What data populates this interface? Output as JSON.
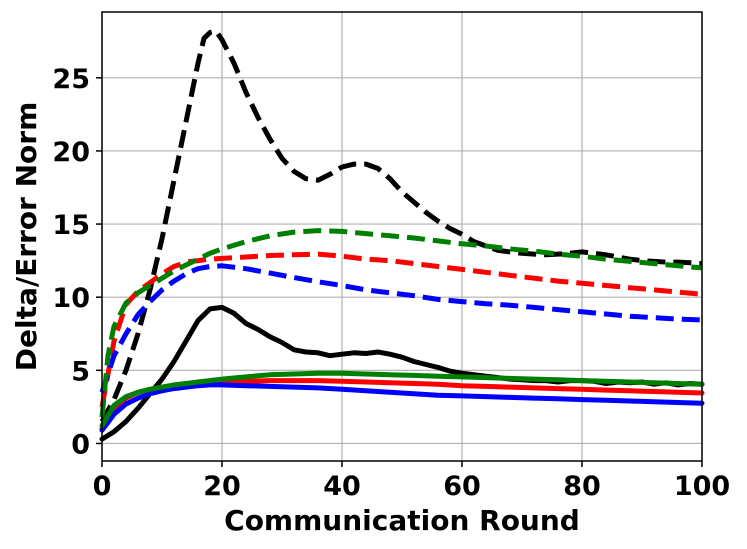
{
  "chart_data": {
    "type": "line",
    "title": "",
    "xlabel": "Communication Round",
    "ylabel": "Delta/Error Norm",
    "xlim": [
      0,
      100
    ],
    "ylim": [
      -1.2,
      29.5
    ],
    "xticks": [
      0,
      20,
      40,
      60,
      80,
      100
    ],
    "yticks": [
      0,
      5,
      10,
      15,
      20,
      25
    ],
    "grid": true,
    "legend": "none",
    "series": [
      {
        "color": "#000000",
        "style": "dashed",
        "points": [
          [
            0,
            1.5
          ],
          [
            2,
            3
          ],
          [
            4,
            5
          ],
          [
            6,
            7.5
          ],
          [
            8,
            10.5
          ],
          [
            10,
            14
          ],
          [
            12,
            18
          ],
          [
            14,
            22
          ],
          [
            16,
            26
          ],
          [
            17,
            27.7
          ],
          [
            18,
            28.1
          ],
          [
            19,
            28.2
          ],
          [
            20,
            27.6
          ],
          [
            22,
            26
          ],
          [
            24,
            24
          ],
          [
            26,
            22.3
          ],
          [
            28,
            20.8
          ],
          [
            30,
            19.5
          ],
          [
            32,
            18.6
          ],
          [
            34,
            18.1
          ],
          [
            36,
            18
          ],
          [
            38,
            18.4
          ],
          [
            40,
            18.9
          ],
          [
            42,
            19.1
          ],
          [
            44,
            19.1
          ],
          [
            46,
            18.8
          ],
          [
            48,
            18.1
          ],
          [
            50,
            17.2
          ],
          [
            52,
            16.5
          ],
          [
            54,
            15.8
          ],
          [
            56,
            15.2
          ],
          [
            58,
            14.7
          ],
          [
            60,
            14.3
          ],
          [
            62,
            13.8
          ],
          [
            64,
            13.5
          ],
          [
            66,
            13.2
          ],
          [
            68,
            13.1
          ],
          [
            70,
            13
          ],
          [
            72,
            12.95
          ],
          [
            74,
            12.9
          ],
          [
            76,
            12.95
          ],
          [
            78,
            13
          ],
          [
            80,
            13.1
          ],
          [
            82,
            13
          ],
          [
            84,
            12.9
          ],
          [
            86,
            12.75
          ],
          [
            88,
            12.6
          ],
          [
            90,
            12.5
          ],
          [
            92,
            12.45
          ],
          [
            94,
            12.4
          ],
          [
            96,
            12.4
          ],
          [
            98,
            12.35
          ],
          [
            100,
            12.3
          ]
        ]
      },
      {
        "color": "#ff0000",
        "style": "dashed",
        "points": [
          [
            0,
            2.5
          ],
          [
            2,
            7
          ],
          [
            4,
            9.5
          ],
          [
            6,
            10.4
          ],
          [
            8,
            11
          ],
          [
            10,
            11.6
          ],
          [
            12,
            12.1
          ],
          [
            14,
            12.4
          ],
          [
            16,
            12.5
          ],
          [
            18,
            12.6
          ],
          [
            20,
            12.65
          ],
          [
            24,
            12.75
          ],
          [
            28,
            12.85
          ],
          [
            32,
            12.9
          ],
          [
            36,
            12.95
          ],
          [
            40,
            12.8
          ],
          [
            44,
            12.6
          ],
          [
            48,
            12.5
          ],
          [
            52,
            12.3
          ],
          [
            56,
            12.1
          ],
          [
            60,
            11.9
          ],
          [
            64,
            11.7
          ],
          [
            68,
            11.5
          ],
          [
            72,
            11.3
          ],
          [
            76,
            11.1
          ],
          [
            80,
            10.95
          ],
          [
            84,
            10.8
          ],
          [
            88,
            10.65
          ],
          [
            92,
            10.5
          ],
          [
            96,
            10.35
          ],
          [
            100,
            10.2
          ]
        ]
      },
      {
        "color": "#0000ff",
        "style": "dashed",
        "points": [
          [
            0,
            3.5
          ],
          [
            2,
            6
          ],
          [
            4,
            7.5
          ],
          [
            6,
            8.8
          ],
          [
            8,
            9.7
          ],
          [
            10,
            10.5
          ],
          [
            12,
            11.1
          ],
          [
            14,
            11.6
          ],
          [
            16,
            11.95
          ],
          [
            18,
            12.1
          ],
          [
            20,
            12.15
          ],
          [
            24,
            11.95
          ],
          [
            28,
            11.65
          ],
          [
            32,
            11.35
          ],
          [
            36,
            11.05
          ],
          [
            40,
            10.8
          ],
          [
            44,
            10.5
          ],
          [
            48,
            10.3
          ],
          [
            52,
            10.1
          ],
          [
            56,
            9.85
          ],
          [
            60,
            9.7
          ],
          [
            64,
            9.55
          ],
          [
            68,
            9.45
          ],
          [
            72,
            9.3
          ],
          [
            76,
            9.15
          ],
          [
            80,
            9
          ],
          [
            84,
            8.85
          ],
          [
            88,
            8.7
          ],
          [
            92,
            8.6
          ],
          [
            96,
            8.5
          ],
          [
            100,
            8.45
          ]
        ]
      },
      {
        "color": "#008000",
        "style": "dashed",
        "points": [
          [
            0,
            1.8
          ],
          [
            1,
            6
          ],
          [
            2,
            8
          ],
          [
            4,
            9.6
          ],
          [
            6,
            10.3
          ],
          [
            8,
            10.8
          ],
          [
            10,
            11.3
          ],
          [
            12,
            11.8
          ],
          [
            14,
            12.2
          ],
          [
            16,
            12.6
          ],
          [
            18,
            13
          ],
          [
            20,
            13.3
          ],
          [
            24,
            13.8
          ],
          [
            28,
            14.2
          ],
          [
            32,
            14.45
          ],
          [
            36,
            14.55
          ],
          [
            40,
            14.5
          ],
          [
            44,
            14.35
          ],
          [
            48,
            14.2
          ],
          [
            52,
            14.05
          ],
          [
            56,
            13.85
          ],
          [
            60,
            13.65
          ],
          [
            64,
            13.5
          ],
          [
            68,
            13.3
          ],
          [
            72,
            13.15
          ],
          [
            76,
            12.95
          ],
          [
            80,
            12.8
          ],
          [
            84,
            12.6
          ],
          [
            88,
            12.45
          ],
          [
            92,
            12.3
          ],
          [
            96,
            12.15
          ],
          [
            100,
            12
          ]
        ]
      },
      {
        "color": "#000000",
        "style": "solid",
        "points": [
          [
            0,
            0.3
          ],
          [
            2,
            0.8
          ],
          [
            4,
            1.5
          ],
          [
            6,
            2.4
          ],
          [
            8,
            3.4
          ],
          [
            10,
            4.4
          ],
          [
            12,
            5.6
          ],
          [
            14,
            7
          ],
          [
            16,
            8.4
          ],
          [
            18,
            9.2
          ],
          [
            20,
            9.3
          ],
          [
            22,
            8.9
          ],
          [
            24,
            8.2
          ],
          [
            26,
            7.8
          ],
          [
            28,
            7.3
          ],
          [
            30,
            6.9
          ],
          [
            32,
            6.4
          ],
          [
            34,
            6.25
          ],
          [
            36,
            6.2
          ],
          [
            38,
            6
          ],
          [
            40,
            6.1
          ],
          [
            42,
            6.2
          ],
          [
            44,
            6.15
          ],
          [
            46,
            6.25
          ],
          [
            48,
            6.1
          ],
          [
            50,
            5.9
          ],
          [
            52,
            5.6
          ],
          [
            54,
            5.4
          ],
          [
            56,
            5.2
          ],
          [
            58,
            4.95
          ],
          [
            60,
            4.8
          ],
          [
            62,
            4.7
          ],
          [
            64,
            4.6
          ],
          [
            66,
            4.5
          ],
          [
            68,
            4.4
          ],
          [
            70,
            4.35
          ],
          [
            72,
            4.3
          ],
          [
            74,
            4.3
          ],
          [
            76,
            4.2
          ],
          [
            78,
            4.3
          ],
          [
            80,
            4.3
          ],
          [
            82,
            4.25
          ],
          [
            84,
            4.1
          ],
          [
            86,
            4.2
          ],
          [
            88,
            4.15
          ],
          [
            90,
            4.2
          ],
          [
            92,
            4.05
          ],
          [
            94,
            4.15
          ],
          [
            96,
            4
          ],
          [
            98,
            4.1
          ],
          [
            100,
            4.05
          ]
        ]
      },
      {
        "color": "#ff0000",
        "style": "solid",
        "points": [
          [
            0,
            1
          ],
          [
            2,
            2.4
          ],
          [
            4,
            3.1
          ],
          [
            6,
            3.5
          ],
          [
            8,
            3.7
          ],
          [
            10,
            3.85
          ],
          [
            12,
            3.95
          ],
          [
            14,
            4.05
          ],
          [
            16,
            4.1
          ],
          [
            18,
            4.15
          ],
          [
            20,
            4.2
          ],
          [
            24,
            4.25
          ],
          [
            28,
            4.3
          ],
          [
            32,
            4.3
          ],
          [
            36,
            4.3
          ],
          [
            40,
            4.25
          ],
          [
            44,
            4.2
          ],
          [
            48,
            4.15
          ],
          [
            52,
            4.1
          ],
          [
            56,
            4.05
          ],
          [
            60,
            3.95
          ],
          [
            64,
            3.9
          ],
          [
            68,
            3.85
          ],
          [
            72,
            3.8
          ],
          [
            76,
            3.75
          ],
          [
            80,
            3.7
          ],
          [
            84,
            3.65
          ],
          [
            88,
            3.6
          ],
          [
            92,
            3.55
          ],
          [
            96,
            3.5
          ],
          [
            100,
            3.45
          ]
        ]
      },
      {
        "color": "#0000ff",
        "style": "solid",
        "points": [
          [
            0,
            0.9
          ],
          [
            2,
            2
          ],
          [
            4,
            2.7
          ],
          [
            6,
            3.1
          ],
          [
            8,
            3.4
          ],
          [
            10,
            3.6
          ],
          [
            12,
            3.75
          ],
          [
            14,
            3.85
          ],
          [
            16,
            3.95
          ],
          [
            18,
            4
          ],
          [
            20,
            4
          ],
          [
            24,
            3.95
          ],
          [
            28,
            3.9
          ],
          [
            32,
            3.85
          ],
          [
            36,
            3.8
          ],
          [
            40,
            3.7
          ],
          [
            44,
            3.6
          ],
          [
            48,
            3.5
          ],
          [
            52,
            3.4
          ],
          [
            56,
            3.3
          ],
          [
            60,
            3.25
          ],
          [
            64,
            3.2
          ],
          [
            68,
            3.15
          ],
          [
            72,
            3.1
          ],
          [
            76,
            3.05
          ],
          [
            80,
            3
          ],
          [
            84,
            2.95
          ],
          [
            88,
            2.9
          ],
          [
            92,
            2.85
          ],
          [
            96,
            2.8
          ],
          [
            100,
            2.75
          ]
        ]
      },
      {
        "color": "#008000",
        "style": "solid",
        "points": [
          [
            0,
            1.2
          ],
          [
            2,
            2.6
          ],
          [
            4,
            3.2
          ],
          [
            6,
            3.5
          ],
          [
            8,
            3.7
          ],
          [
            10,
            3.85
          ],
          [
            12,
            4
          ],
          [
            14,
            4.1
          ],
          [
            16,
            4.2
          ],
          [
            18,
            4.3
          ],
          [
            20,
            4.4
          ],
          [
            24,
            4.55
          ],
          [
            28,
            4.7
          ],
          [
            32,
            4.75
          ],
          [
            36,
            4.8
          ],
          [
            40,
            4.8
          ],
          [
            44,
            4.75
          ],
          [
            48,
            4.7
          ],
          [
            52,
            4.65
          ],
          [
            56,
            4.6
          ],
          [
            60,
            4.55
          ],
          [
            64,
            4.5
          ],
          [
            68,
            4.45
          ],
          [
            72,
            4.4
          ],
          [
            76,
            4.35
          ],
          [
            80,
            4.3
          ],
          [
            84,
            4.25
          ],
          [
            88,
            4.2
          ],
          [
            92,
            4.15
          ],
          [
            96,
            4.1
          ],
          [
            100,
            4.05
          ]
        ]
      }
    ]
  }
}
